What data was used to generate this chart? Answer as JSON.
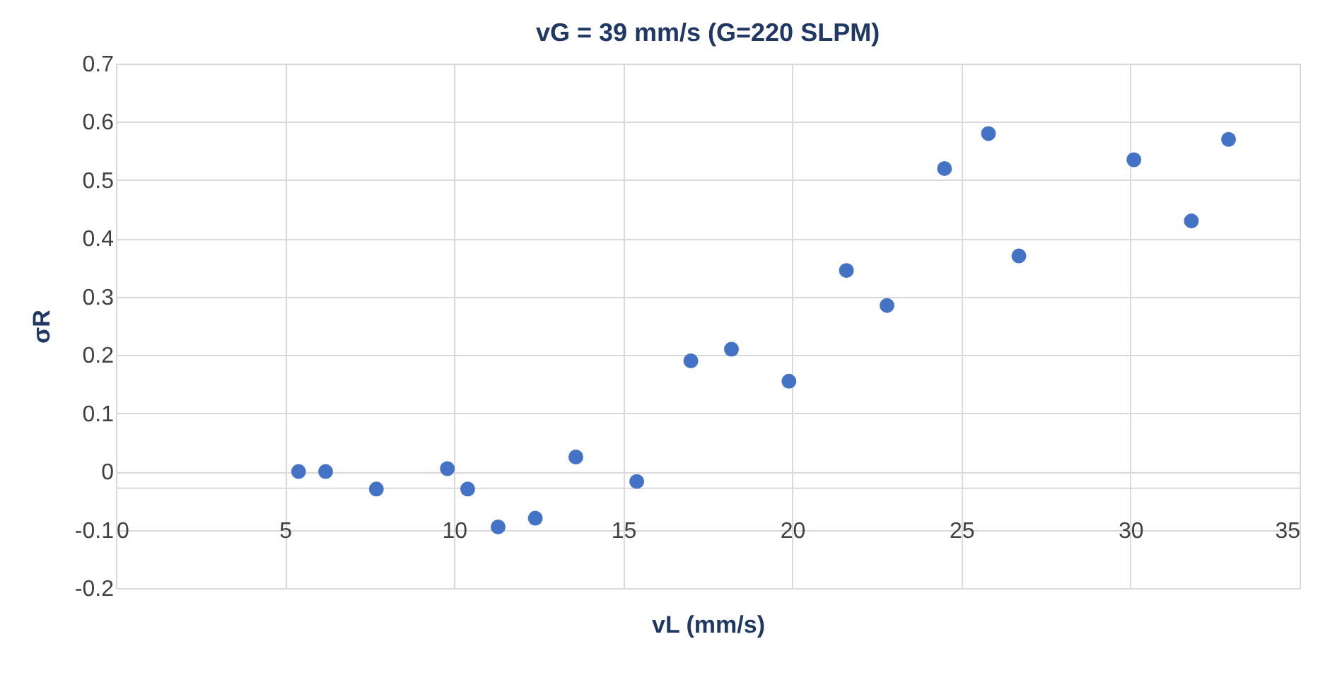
{
  "chart_data": {
    "type": "scatter",
    "title": "vG = 39 mm/s  (G=220 SLPM)",
    "xlabel": "vL (mm/s)",
    "ylabel": "σR",
    "x": [
      5.4,
      6.2,
      7.7,
      9.8,
      10.4,
      11.3,
      12.4,
      13.6,
      15.4,
      17.0,
      18.2,
      19.9,
      21.6,
      22.8,
      24.5,
      25.8,
      26.7,
      30.1,
      31.8,
      32.9
    ],
    "series": [
      {
        "color": "#4472c4",
        "values": [
          0.0,
          0.0,
          -0.03,
          0.005,
          -0.03,
          -0.095,
          -0.08,
          0.025,
          -0.017,
          0.19,
          0.21,
          0.155,
          0.345,
          0.285,
          0.52,
          0.58,
          0.37,
          0.535,
          0.43,
          0.57
        ]
      }
    ],
    "xlim": [
      0,
      35
    ],
    "xticks": [
      0,
      5,
      10,
      15,
      20,
      25,
      30,
      35
    ],
    "ylim": [
      -0.2,
      0.7
    ],
    "yticks": [
      -0.2,
      -0.1,
      {
        "value": 0,
        "label": "0"
      },
      0.1,
      0.2,
      0.3,
      0.4,
      0.5,
      0.6,
      0.7
    ],
    "grid": true,
    "marker": "circle"
  }
}
